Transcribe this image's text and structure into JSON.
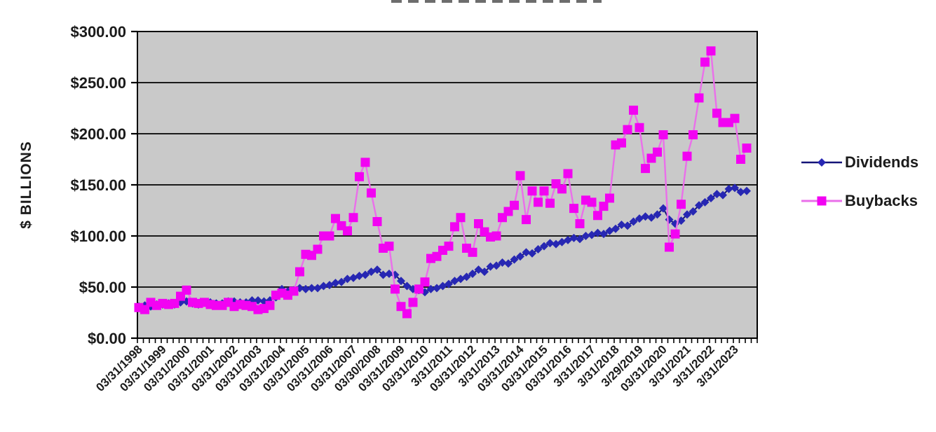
{
  "chart_data": {
    "type": "line",
    "ylabel": "$ BILLIONS",
    "ylim": [
      0,
      300
    ],
    "gridline_interval": 50,
    "grid": "horizontal",
    "plot_background": "#c9c9c9",
    "gridline_color": "#000000",
    "y_tick_labels": [
      "$300.00",
      "$250.00",
      "$200.00",
      "$150.00",
      "$100.00",
      "$50.00",
      "$0.00"
    ],
    "x_tick_labels": [
      "03/31/1998",
      "03/31/1999",
      "03/31/2000",
      "03/31/2001",
      "03/31/2002",
      "03/31/2003",
      "03/31/2004",
      "03/31/2005",
      "03/31/2006",
      "03/31/2007",
      "03/30/2008",
      "03/31/2009",
      "03/31/2010",
      "3/31/2011",
      "03/31/2012",
      "3/31/2013",
      "03/31/2014",
      "03/31/2015",
      "03/31/2016",
      "3/31/2017",
      "3/31/2018",
      "3/29/2019",
      "03/31/2020",
      "3/31/2021",
      "3/31/2022",
      "3/31/2023"
    ],
    "points_per_label": 4,
    "n_points": 103,
    "x_unit": "quarterly, Q1 1998 through Q3 2023",
    "legend_position": "right",
    "series": [
      {
        "name": "Dividends",
        "marker": "diamond",
        "line_color": "#141478",
        "marker_color": "#2727b3",
        "values": [
          31,
          32,
          31,
          33,
          33,
          34,
          33,
          35,
          36,
          34,
          33,
          35,
          35,
          34,
          34,
          36,
          36,
          35,
          35,
          37,
          37,
          36,
          37,
          40,
          48,
          46,
          47,
          49,
          48,
          49,
          49,
          51,
          52,
          54,
          55,
          58,
          59,
          61,
          62,
          65,
          67,
          62,
          63,
          62,
          56,
          51,
          48,
          47,
          45,
          48,
          49,
          51,
          53,
          56,
          58,
          60,
          63,
          67,
          65,
          70,
          71,
          74,
          73,
          77,
          80,
          84,
          83,
          87,
          90,
          93,
          92,
          94,
          96,
          98,
          97,
          100,
          101,
          103,
          102,
          105,
          107,
          111,
          110,
          114,
          117,
          119,
          118,
          121,
          127,
          116,
          112,
          115,
          121,
          124,
          130,
          133,
          137,
          141,
          140,
          146,
          147,
          143,
          144
        ]
      },
      {
        "name": "Buybacks",
        "marker": "square",
        "line_color": "#ea6fea",
        "marker_color": "#f203f2",
        "values": [
          30,
          28,
          35,
          32,
          34,
          33,
          34,
          41,
          47,
          35,
          34,
          35,
          33,
          32,
          32,
          35,
          31,
          33,
          32,
          31,
          28,
          29,
          32,
          42,
          44,
          42,
          46,
          65,
          82,
          81,
          87,
          100,
          100,
          117,
          110,
          105,
          118,
          158,
          172,
          142,
          114,
          88,
          90,
          48,
          31,
          24,
          35,
          48,
          55,
          78,
          80,
          86,
          90,
          109,
          118,
          88,
          84,
          112,
          104,
          99,
          100,
          118,
          124,
          130,
          159,
          116,
          144,
          133,
          144,
          132,
          151,
          146,
          161,
          127,
          112,
          135,
          133,
          120,
          129,
          137,
          189,
          191,
          204,
          223,
          206,
          166,
          176,
          182,
          199,
          89,
          102,
          131,
          178,
          199,
          235,
          270,
          281,
          220,
          211,
          211,
          215,
          175,
          186
        ]
      }
    ]
  }
}
